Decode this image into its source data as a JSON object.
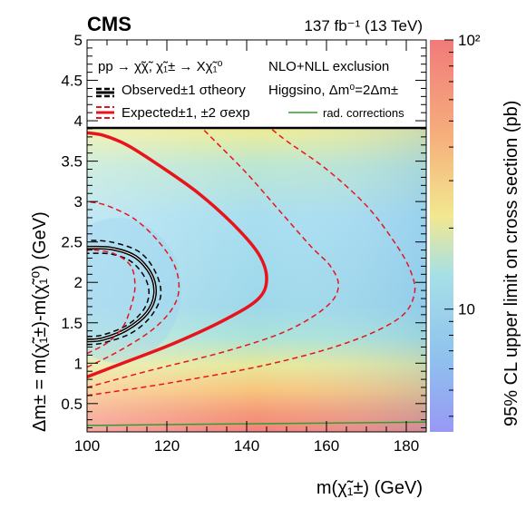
{
  "header": {
    "experiment": "CMS",
    "luminosity": "137 fb⁻¹ (13 TeV)"
  },
  "chart_data": {
    "type": "heatmap",
    "title": "",
    "xlabel": "m(χ̃₁±) (GeV)",
    "ylabel": "Δm± = m(χ̃₁±)-m(χ̃₁⁰) (GeV)",
    "zlabel": "95% CL upper limit on cross section (pb)",
    "xlim": [
      100,
      185
    ],
    "ylim": [
      0.15,
      5.0
    ],
    "zlim": [
      3.5,
      100
    ],
    "zscale": "log",
    "x_ticks": [
      "100",
      "120",
      "140",
      "160",
      "180"
    ],
    "y_ticks": [
      "0.5",
      "1",
      "1.5",
      "2",
      "2.5",
      "3",
      "3.5",
      "4",
      "4.5",
      "5"
    ],
    "z_ticks": [
      "10",
      "10²"
    ],
    "legend": {
      "process": "pp → χ̃χ̃, χ̃₁± → Xχ̃₁⁰",
      "exclusion": "NLO+NLL exclusion",
      "scenario": "Higgsino, Δm⁰=2Δm±",
      "observed": "Observed±1 σtheory",
      "expected": "Expected±1, ±2 σexp",
      "rad": "rad. corrections",
      "placement": "top"
    },
    "contours": [
      {
        "name": "Observed",
        "color": "#000000",
        "style": "solid",
        "points": [
          [
            100,
            1.28
          ],
          [
            104,
            1.3
          ],
          [
            110,
            1.42
          ],
          [
            115,
            1.62
          ],
          [
            117,
            1.85
          ],
          [
            116,
            2.1
          ],
          [
            112,
            2.32
          ],
          [
            106,
            2.42
          ],
          [
            100,
            2.43
          ]
        ]
      },
      {
        "name": "Observed +1σ theory",
        "color": "#000000",
        "style": "dashed",
        "points": [
          [
            100,
            1.23
          ],
          [
            104,
            1.25
          ],
          [
            111,
            1.37
          ],
          [
            116,
            1.58
          ],
          [
            118.5,
            1.85
          ],
          [
            117,
            2.14
          ],
          [
            113,
            2.38
          ],
          [
            106,
            2.5
          ],
          [
            100,
            2.52
          ]
        ]
      },
      {
        "name": "Observed -1σ theory",
        "color": "#000000",
        "style": "dashed",
        "points": [
          [
            100,
            1.33
          ],
          [
            104,
            1.35
          ],
          [
            110,
            1.47
          ],
          [
            114,
            1.65
          ],
          [
            115.5,
            1.85
          ],
          [
            114.5,
            2.06
          ],
          [
            111,
            2.26
          ],
          [
            106,
            2.35
          ],
          [
            100,
            2.36
          ]
        ]
      },
      {
        "name": "Expected",
        "color": "#e8141c",
        "style": "solid",
        "points": [
          [
            100,
            0.83
          ],
          [
            110,
            1.02
          ],
          [
            122,
            1.25
          ],
          [
            135,
            1.55
          ],
          [
            143,
            1.8
          ],
          [
            145,
            2.05
          ],
          [
            143,
            2.35
          ],
          [
            137,
            2.7
          ],
          [
            128,
            3.1
          ],
          [
            118,
            3.45
          ],
          [
            110,
            3.7
          ],
          [
            104,
            3.82
          ],
          [
            100,
            3.85
          ]
        ]
      },
      {
        "name": "Expected +1σ exp",
        "color": "#e8141c",
        "style": "dashed",
        "points": [
          [
            100,
            0.95
          ],
          [
            108,
            1.15
          ],
          [
            116,
            1.4
          ],
          [
            121,
            1.65
          ],
          [
            123,
            1.9
          ],
          [
            122,
            2.2
          ],
          [
            118,
            2.5
          ],
          [
            112,
            2.78
          ],
          [
            105,
            2.95
          ],
          [
            100,
            3.0
          ]
        ]
      },
      {
        "name": "Expected -1σ exp",
        "color": "#e8141c",
        "style": "dashed",
        "points": [
          [
            100,
            0.7
          ],
          [
            115,
            0.9
          ],
          [
            135,
            1.15
          ],
          [
            150,
            1.4
          ],
          [
            160,
            1.7
          ],
          [
            163,
            1.95
          ],
          [
            161,
            2.2
          ],
          [
            156,
            2.45
          ],
          [
            148,
            2.9
          ],
          [
            140,
            3.35
          ],
          [
            132,
            3.75
          ],
          [
            128,
            3.95
          ]
        ]
      },
      {
        "name": "Expected +2σ exp",
        "color": "#e8141c",
        "style": "dashed",
        "points": [
          [
            100,
            1.12
          ],
          [
            105,
            1.25
          ],
          [
            109,
            1.45
          ],
          [
            111,
            1.7
          ],
          [
            112,
            1.95
          ],
          [
            111,
            2.2
          ],
          [
            107,
            2.35
          ],
          [
            102,
            2.4
          ],
          [
            100,
            2.4
          ]
        ]
      },
      {
        "name": "Expected -2σ exp",
        "color": "#e8141c",
        "style": "dashed",
        "points": [
          [
            100,
            0.6
          ],
          [
            120,
            0.75
          ],
          [
            145,
            0.98
          ],
          [
            165,
            1.25
          ],
          [
            178,
            1.55
          ],
          [
            182,
            1.85
          ],
          [
            181,
            2.15
          ],
          [
            177,
            2.5
          ],
          [
            170,
            2.95
          ],
          [
            160,
            3.4
          ],
          [
            150,
            3.75
          ],
          [
            145,
            3.95
          ]
        ]
      },
      {
        "name": "rad. corrections",
        "color": "#2e9e2e",
        "style": "solid",
        "points": [
          [
            100,
            0.23
          ],
          [
            140,
            0.25
          ],
          [
            185,
            0.27
          ]
        ]
      }
    ]
  }
}
